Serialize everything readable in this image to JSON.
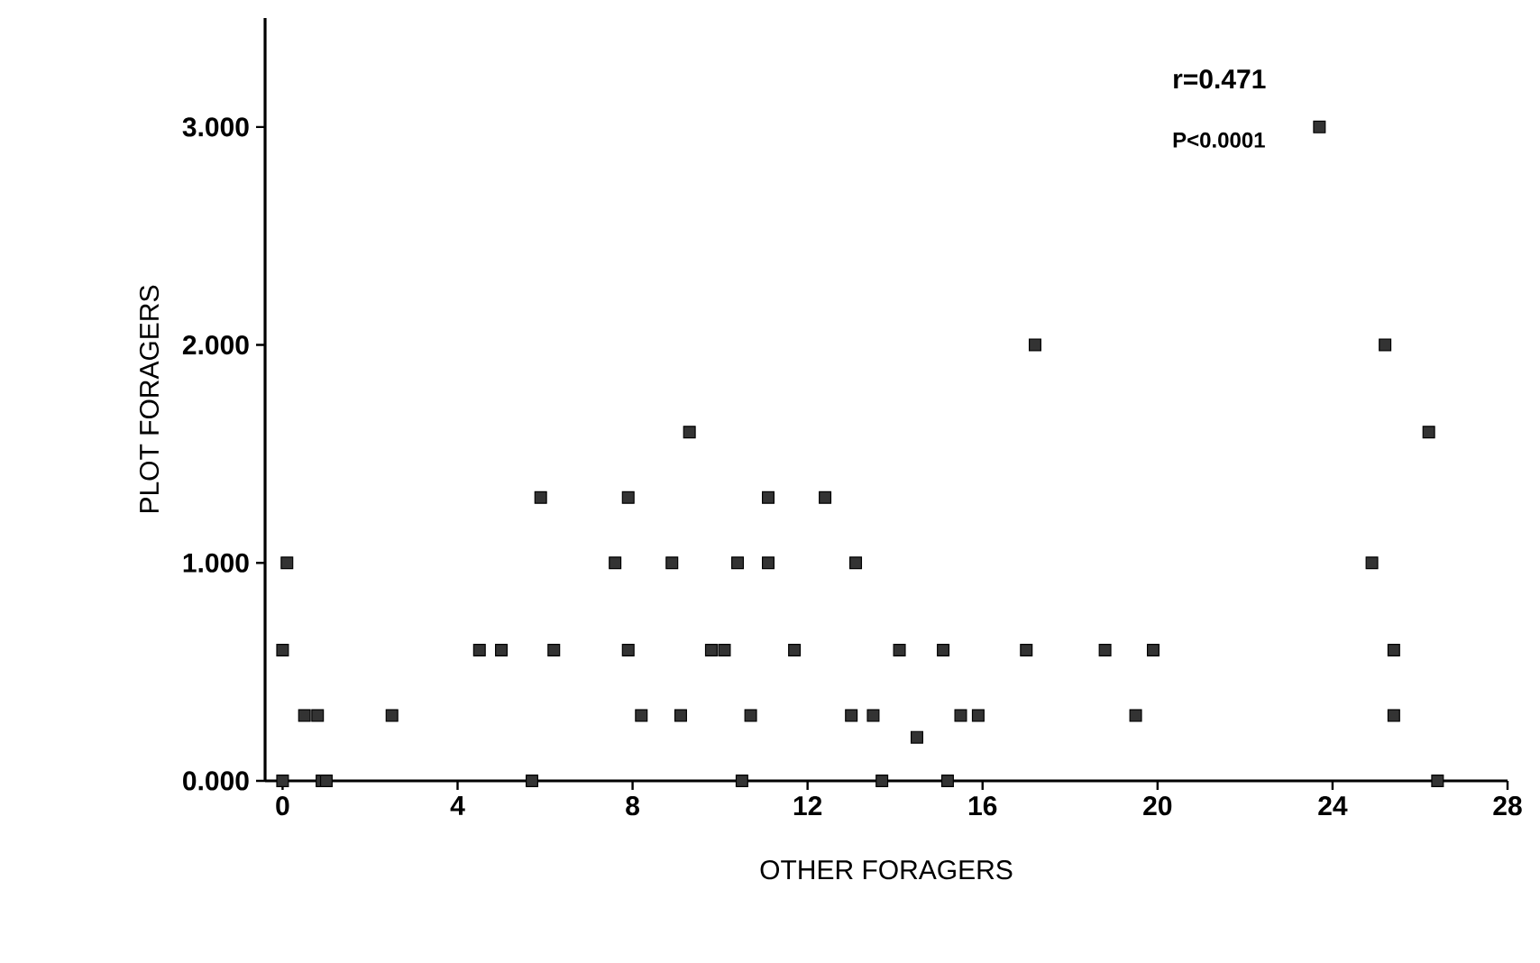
{
  "chart_data": {
    "type": "scatter",
    "xlabel": "OTHER FORAGERS",
    "ylabel": "PLOT FORAGERS",
    "annotations": [
      "r=0.471",
      "P<0.0001"
    ],
    "series": [
      {
        "color": "#333333",
        "marker": "square",
        "x": [
          0,
          0,
          0.1,
          0.5,
          0.8,
          0.9,
          1.0,
          2.5,
          4.5,
          5.0,
          5.7,
          5.9,
          6.2,
          7.6,
          7.9,
          7.9,
          8.2,
          8.9,
          9.1,
          9.3,
          9.8,
          10.1,
          10.4,
          10.5,
          10.7,
          11.1,
          11.1,
          11.7,
          12.4,
          13.0,
          13.1,
          13.5,
          13.7,
          14.1,
          14.5,
          15.1,
          15.2,
          15.5,
          15.9,
          17.0,
          17.2,
          18.8,
          19.5,
          19.9,
          23.7,
          24.9,
          25.2,
          25.4,
          25.4,
          26.2,
          26.4
        ],
        "values": [
          0,
          0.6,
          1.0,
          0.3,
          0.3,
          0,
          0,
          0.3,
          0.6,
          0.6,
          0,
          1.3,
          0.6,
          1.0,
          1.3,
          0.6,
          0.3,
          1.0,
          0.3,
          1.6,
          0.6,
          0.6,
          1.0,
          0,
          0.3,
          1.3,
          1.0,
          0.6,
          1.3,
          0.3,
          1.0,
          0.3,
          0,
          0.6,
          0.2,
          0.6,
          0,
          0.3,
          0.3,
          0.6,
          2.0,
          0.6,
          0.3,
          0.6,
          3.0,
          1.0,
          2.0,
          0.6,
          0.3,
          1.6,
          0
        ]
      }
    ],
    "xlim": [
      -0.4,
      28
    ],
    "ylim": [
      0,
      3.5
    ],
    "xticks": [
      0,
      4,
      8,
      12,
      16,
      20,
      24,
      28
    ],
    "yticks": [
      {
        "value": 0,
        "label": "0.000"
      },
      {
        "value": 1,
        "label": "1.000"
      },
      {
        "value": 2,
        "label": "2.000"
      },
      {
        "value": 3,
        "label": "3.000"
      }
    ],
    "grid": false
  }
}
